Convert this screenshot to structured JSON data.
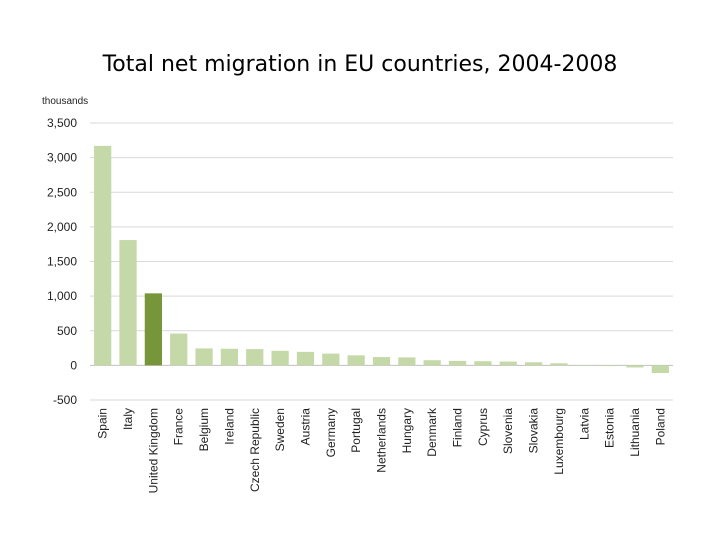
{
  "slide": {
    "title": "Total net migration in EU countries, 2004-2008"
  },
  "chart_data": {
    "type": "bar",
    "title": "Total net migration in EU countries, 2004-2008",
    "ylabel": "thousands",
    "xlabel": "",
    "ylim": [
      -500,
      3500
    ],
    "yticks": [
      3500,
      3000,
      2500,
      2000,
      1500,
      1000,
      500,
      0,
      -500
    ],
    "ytick_labels": [
      "3,500",
      "3,000",
      "2,500",
      "2,000",
      "1,500",
      "1,000",
      "500",
      "0",
      "-500"
    ],
    "grid": true,
    "categories": [
      "Spain",
      "Italy",
      "United Kingdom",
      "France",
      "Belgium",
      "Ireland",
      "Czech Republic",
      "Sweden",
      "Austria",
      "Germany",
      "Portugal",
      "Netherlands",
      "Hungary",
      "Denmark",
      "Finland",
      "Cyprus",
      "Slovenia",
      "Slovakia",
      "Luxembourg",
      "Latvia",
      "Estonia",
      "Lithuania",
      "Poland"
    ],
    "values": [
      3170,
      1810,
      1040,
      460,
      245,
      240,
      235,
      210,
      195,
      170,
      145,
      120,
      115,
      75,
      65,
      60,
      55,
      45,
      30,
      -5,
      -10,
      -30,
      -110
    ],
    "highlight": "United Kingdom",
    "colors": {
      "bar": "#c5d9a8",
      "highlight": "#77963a",
      "grid": "#d9d9d9",
      "zero_line": "#bfbfbf"
    }
  }
}
